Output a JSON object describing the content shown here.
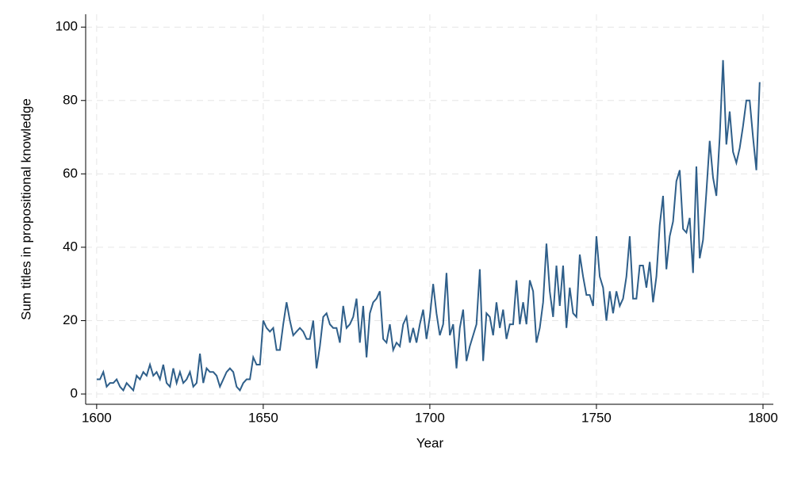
{
  "chart_data": {
    "type": "line",
    "x_label": "Year",
    "y_label": "Sum titles in propositional knowledge",
    "x": [
      1600,
      1601,
      1602,
      1603,
      1604,
      1605,
      1606,
      1607,
      1608,
      1609,
      1610,
      1611,
      1612,
      1613,
      1614,
      1615,
      1616,
      1617,
      1618,
      1619,
      1620,
      1621,
      1622,
      1623,
      1624,
      1625,
      1626,
      1627,
      1628,
      1629,
      1630,
      1631,
      1632,
      1633,
      1634,
      1635,
      1636,
      1637,
      1638,
      1639,
      1640,
      1641,
      1642,
      1643,
      1644,
      1645,
      1646,
      1647,
      1648,
      1649,
      1650,
      1651,
      1652,
      1653,
      1654,
      1655,
      1656,
      1657,
      1658,
      1659,
      1660,
      1661,
      1662,
      1663,
      1664,
      1665,
      1666,
      1667,
      1668,
      1669,
      1670,
      1671,
      1672,
      1673,
      1674,
      1675,
      1676,
      1677,
      1678,
      1679,
      1680,
      1681,
      1682,
      1683,
      1684,
      1685,
      1686,
      1687,
      1688,
      1689,
      1690,
      1691,
      1692,
      1693,
      1694,
      1695,
      1696,
      1697,
      1698,
      1699,
      1700,
      1701,
      1702,
      1703,
      1704,
      1705,
      1706,
      1707,
      1708,
      1709,
      1710,
      1711,
      1712,
      1713,
      1714,
      1715,
      1716,
      1717,
      1718,
      1719,
      1720,
      1721,
      1722,
      1723,
      1724,
      1725,
      1726,
      1727,
      1728,
      1729,
      1730,
      1731,
      1732,
      1733,
      1734,
      1735,
      1736,
      1737,
      1738,
      1739,
      1740,
      1741,
      1742,
      1743,
      1744,
      1745,
      1746,
      1747,
      1748,
      1749,
      1750,
      1751,
      1752,
      1753,
      1754,
      1755,
      1756,
      1757,
      1758,
      1759,
      1760,
      1761,
      1762,
      1763,
      1764,
      1765,
      1766,
      1767,
      1768,
      1769,
      1770,
      1771,
      1772,
      1773,
      1774,
      1775,
      1776,
      1777,
      1778,
      1779,
      1780,
      1781,
      1782,
      1783,
      1784,
      1785,
      1786,
      1787,
      1788,
      1789,
      1790,
      1791,
      1792,
      1793,
      1794,
      1795,
      1796,
      1797,
      1798,
      1799
    ],
    "series": [
      {
        "color": "#2f5f8a",
        "values": [
          4,
          4,
          6,
          2,
          3,
          3,
          4,
          2,
          1,
          3,
          2,
          1,
          5,
          4,
          6,
          5,
          8,
          5,
          6,
          4,
          8,
          3,
          2,
          7,
          3,
          6,
          3,
          4,
          6,
          2,
          3,
          11,
          3,
          7,
          6,
          6,
          5,
          2,
          4,
          6,
          7,
          6,
          2,
          1,
          3,
          4,
          4,
          10,
          8,
          8,
          20,
          18,
          17,
          18,
          12,
          12,
          19,
          25,
          20,
          16,
          17,
          18,
          17,
          15,
          15,
          20,
          7,
          13,
          21,
          22,
          19,
          18,
          18,
          14,
          24,
          18,
          19,
          21,
          26,
          14,
          24,
          10,
          22,
          25,
          26,
          28,
          15,
          14,
          19,
          12,
          14,
          13,
          19,
          21,
          14,
          18,
          14,
          19,
          23,
          15,
          21,
          30,
          22,
          16,
          19,
          33,
          16,
          19,
          7,
          18,
          23,
          9,
          13,
          16,
          19,
          34,
          9,
          22,
          21,
          16,
          25,
          18,
          23,
          15,
          19,
          19,
          31,
          19,
          25,
          19,
          31,
          28,
          14,
          18,
          25,
          41,
          28,
          21,
          35,
          24,
          35,
          18,
          29,
          22,
          21,
          38,
          32,
          27,
          27,
          24,
          43,
          32,
          29,
          20,
          28,
          22,
          28,
          24,
          26,
          32,
          43,
          26,
          26,
          35,
          35,
          29,
          36,
          25,
          32,
          46,
          54,
          34,
          43,
          47,
          58,
          61,
          45,
          44,
          48,
          33,
          62,
          37,
          42,
          55,
          69,
          59,
          54,
          70,
          91,
          68,
          77,
          66,
          63,
          67,
          73,
          80,
          80,
          70,
          61,
          85
        ]
      }
    ],
    "xlim": [
      1596.7,
      1803.1
    ],
    "xticks": [
      1600,
      1650,
      1700,
      1750,
      1800
    ],
    "ylim": [
      -2.8,
      103.5
    ],
    "yticks": [
      0,
      20,
      40,
      60,
      80,
      100
    ],
    "grid": true
  }
}
